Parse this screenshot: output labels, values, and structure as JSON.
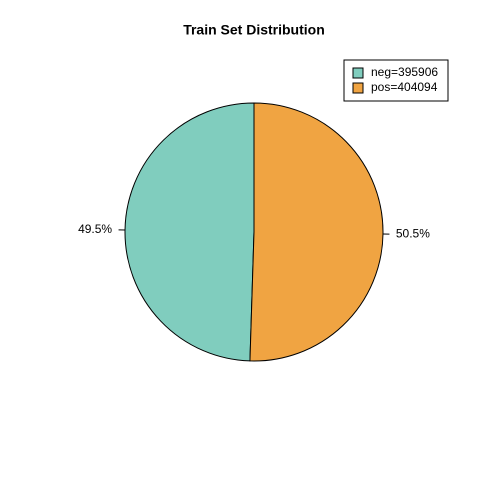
{
  "chart_data": {
    "type": "pie",
    "title": "Train Set Distribution",
    "categories": [
      "neg=395906",
      "pos=404094"
    ],
    "values": [
      49.5,
      50.5
    ],
    "value_labels": [
      "49.5%",
      "50.5%"
    ],
    "colors": [
      "#80cdbe",
      "#f0a442"
    ],
    "legend": "top-right"
  }
}
